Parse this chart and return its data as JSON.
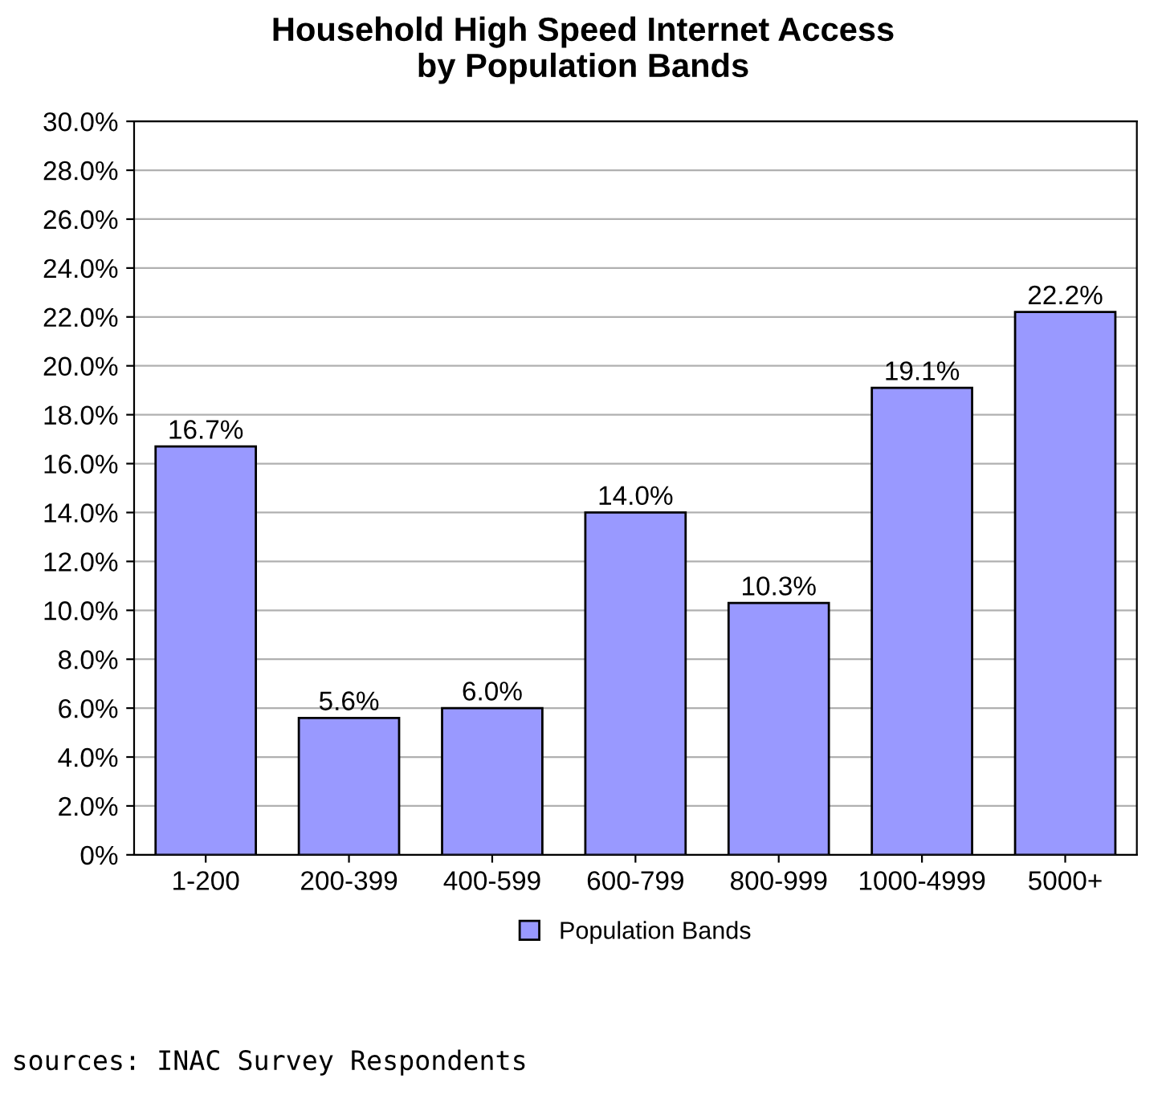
{
  "chart_data": {
    "type": "bar",
    "title": "Household High Speed Internet Access\nby Population Bands",
    "categories": [
      "1-200",
      "200-399",
      "400-599",
      "600-799",
      "800-999",
      "1000-4999",
      "5000+"
    ],
    "series": [
      {
        "name": "Population Bands",
        "color": "#9999ff",
        "values": [
          16.7,
          5.6,
          6.0,
          14.0,
          10.3,
          19.1,
          22.2
        ],
        "value_labels": [
          "16.7%",
          "5.6%",
          "6.0%",
          "14.0%",
          "10.3%",
          "19.1%",
          "22.2%"
        ]
      }
    ],
    "ylim": [
      0,
      30
    ],
    "yticks": [
      {
        "value": 0,
        "label": "0%"
      },
      {
        "value": 2,
        "label": "2.0%"
      },
      {
        "value": 4,
        "label": "4.0%"
      },
      {
        "value": 6,
        "label": "6.0%"
      },
      {
        "value": 8,
        "label": "8.0%"
      },
      {
        "value": 10,
        "label": "10.0%"
      },
      {
        "value": 12,
        "label": "12.0%"
      },
      {
        "value": 14,
        "label": "14.0%"
      },
      {
        "value": 16,
        "label": "16.0%"
      },
      {
        "value": 18,
        "label": "18.0%"
      },
      {
        "value": 20,
        "label": "20.0%"
      },
      {
        "value": 22,
        "label": "22.0%"
      },
      {
        "value": 24,
        "label": "24.0%"
      },
      {
        "value": 26,
        "label": "26.0%"
      },
      {
        "value": 28,
        "label": "28.0%"
      },
      {
        "value": 30,
        "label": "30.0%"
      }
    ],
    "grid": "y",
    "legend": "bottom",
    "annotations": [
      "sources: INAC Survey Respondents"
    ]
  }
}
